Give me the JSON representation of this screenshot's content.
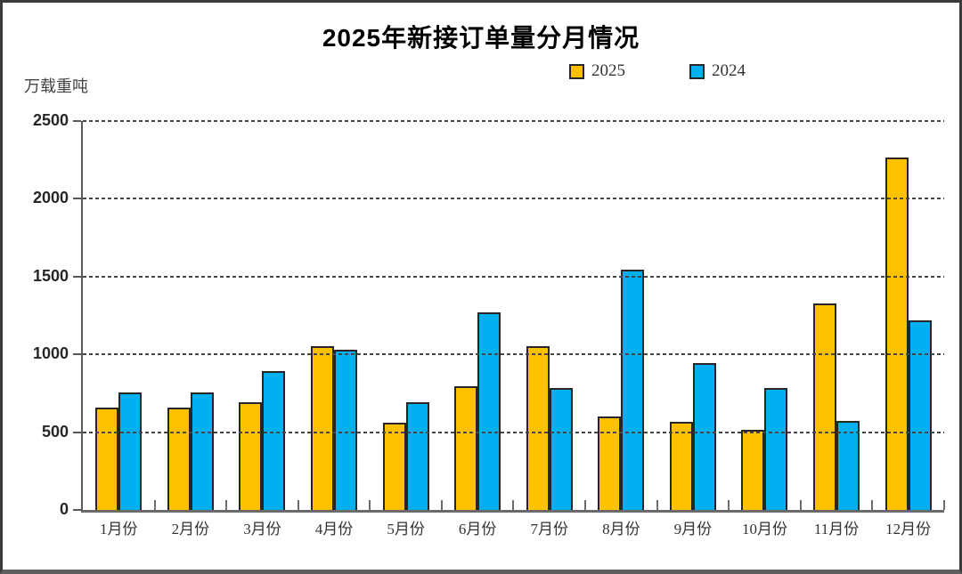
{
  "chart_data": {
    "type": "bar",
    "title": "2025年新接订单量分月情况",
    "unit_label": "万载重吨",
    "categories": [
      "1月份",
      "2月份",
      "3月份",
      "4月份",
      "5月份",
      "6月份",
      "7月份",
      "8月份",
      "9月份",
      "10月份",
      "11月份",
      "12月份"
    ],
    "series": [
      {
        "name": "2025",
        "color": "#FFC000",
        "values": [
          660,
          660,
          690,
          1050,
          560,
          795,
          1050,
          600,
          565,
          515,
          1330,
          2265
        ]
      },
      {
        "name": "2024",
        "color": "#00B0F0",
        "values": [
          755,
          755,
          890,
          1030,
          690,
          1270,
          785,
          1545,
          945,
          785,
          570,
          1220
        ]
      }
    ],
    "ylim": [
      0,
      2500
    ],
    "ytick_interval": 500,
    "yticks": [
      2500,
      2000,
      1500,
      1000,
      500,
      0
    ],
    "grid": "horizontal dashed",
    "legend_position": "top-right",
    "colors": {
      "bar_border": "#262626",
      "axis": "#595959",
      "gridline": "#454545",
      "text": "#333333"
    }
  }
}
